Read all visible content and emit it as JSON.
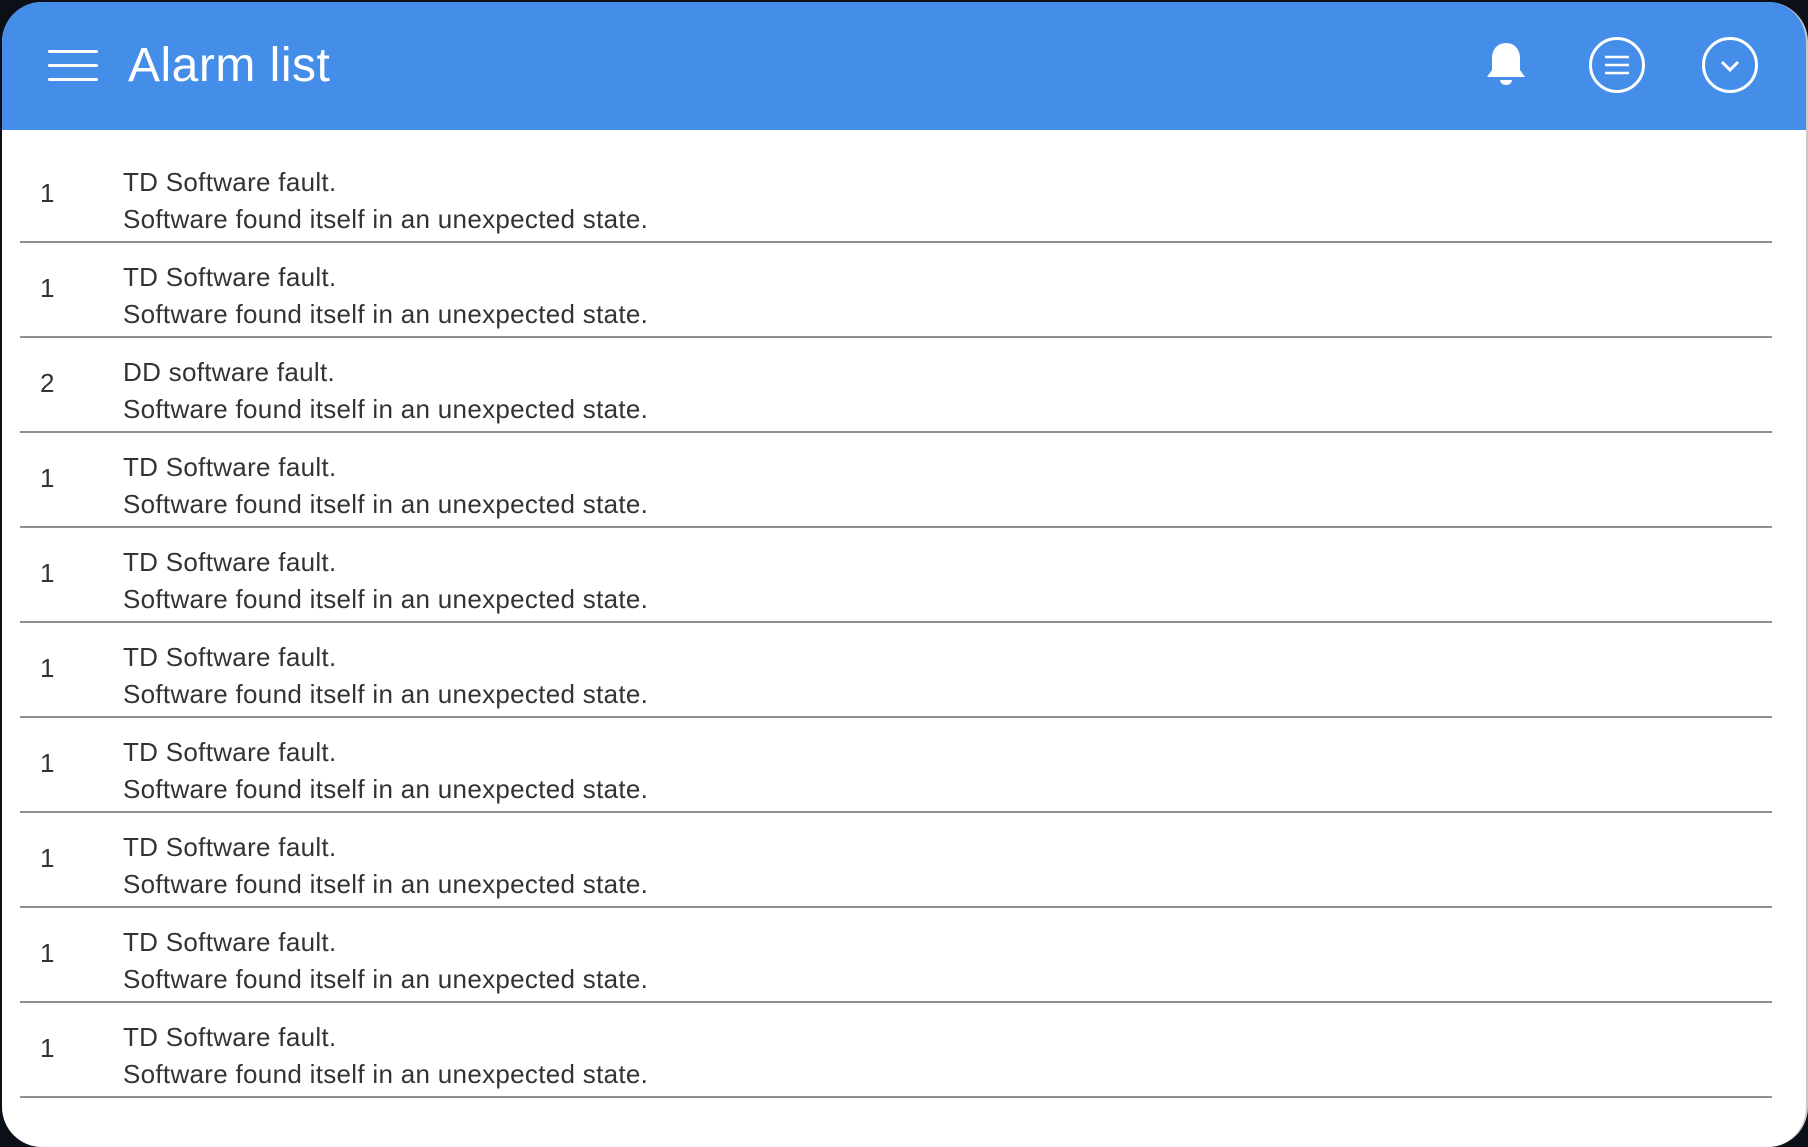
{
  "colors": {
    "accent": "#448ee9",
    "text": "#333333",
    "background": "#0b0f17"
  },
  "header": {
    "title": "Alarm list",
    "menu_icon": "hamburger-icon",
    "actions": [
      {
        "icon": "bell-icon"
      },
      {
        "icon": "list-circle-icon"
      },
      {
        "icon": "chevron-down-circle-icon"
      }
    ]
  },
  "alarms": [
    {
      "count": "1",
      "title": "TD Software fault.",
      "description": "Software found itself in an unexpected state."
    },
    {
      "count": "1",
      "title": "TD Software fault.",
      "description": "Software found itself in an unexpected state."
    },
    {
      "count": "2",
      "title": "DD software fault.",
      "description": "Software found itself in an unexpected state."
    },
    {
      "count": "1",
      "title": "TD Software fault.",
      "description": "Software found itself in an unexpected state."
    },
    {
      "count": "1",
      "title": "TD Software fault.",
      "description": "Software found itself in an unexpected state."
    },
    {
      "count": "1",
      "title": "TD Software fault.",
      "description": "Software found itself in an unexpected state."
    },
    {
      "count": "1",
      "title": "TD Software fault.",
      "description": "Software found itself in an unexpected state."
    },
    {
      "count": "1",
      "title": "TD Software fault.",
      "description": "Software found itself in an unexpected state."
    },
    {
      "count": "1",
      "title": "TD Software fault.",
      "description": "Software found itself in an unexpected state."
    },
    {
      "count": "1",
      "title": "TD Software fault.",
      "description": "Software found itself in an unexpected state."
    }
  ]
}
